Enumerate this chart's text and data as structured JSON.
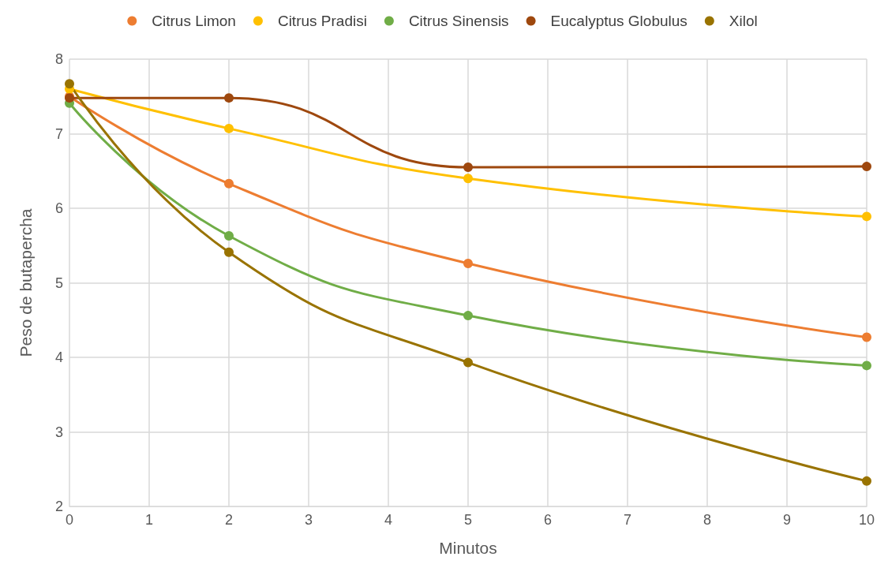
{
  "chart_data": {
    "type": "line",
    "xlabel": "Minutos",
    "ylabel": "Peso de butapercha",
    "x": [
      0,
      2,
      5,
      10
    ],
    "series": [
      {
        "name": "Citrus Limon",
        "color": "#ed7d31",
        "values": [
          7.5,
          6.33,
          5.26,
          4.27
        ]
      },
      {
        "name": "Citrus Pradisi",
        "color": "#ffc000",
        "values": [
          7.6,
          7.07,
          6.4,
          5.89
        ]
      },
      {
        "name": "Citrus Sinensis",
        "color": "#70ad47",
        "values": [
          7.41,
          5.63,
          4.56,
          3.89
        ]
      },
      {
        "name": "Eucalyptus Globulus",
        "color": "#9e480e",
        "values": [
          7.48,
          7.48,
          6.55,
          6.56
        ]
      },
      {
        "name": "Xilol",
        "color": "#997300",
        "values": [
          7.67,
          5.41,
          3.93,
          2.34
        ]
      }
    ],
    "xlim": [
      0,
      10
    ],
    "xticks": [
      0,
      1,
      2,
      3,
      4,
      5,
      6,
      7,
      8,
      9,
      10
    ],
    "ylim": [
      2,
      8
    ],
    "yticks": [
      2,
      3,
      4,
      5,
      6,
      7,
      8
    ],
    "grid": true,
    "legend": "top",
    "marker": "circle",
    "line_style": "solid"
  }
}
